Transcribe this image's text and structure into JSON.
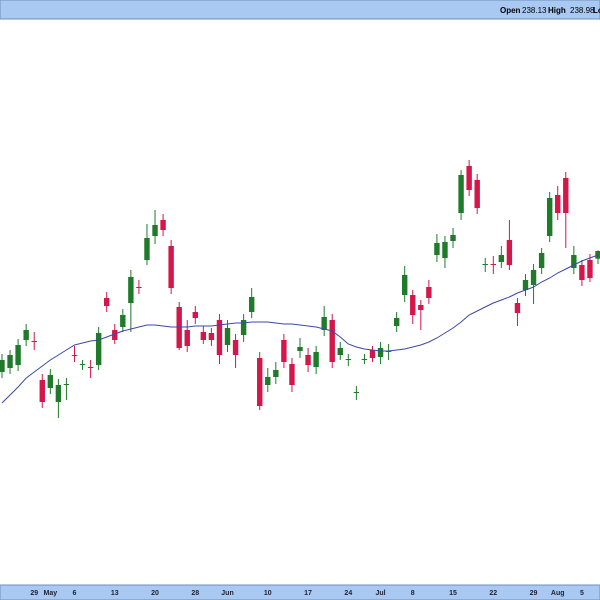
{
  "chart_data": {
    "type": "candlestick",
    "header": [
      {
        "label": "Open",
        "value": 238.13
      },
      {
        "label": "High",
        "value": 238.98
      },
      {
        "label": "Lo"
      }
    ],
    "categories": [
      null,
      null,
      null,
      null,
      "29",
      null,
      "May",
      null,
      null,
      "6",
      null,
      null,
      null,
      null,
      "13",
      null,
      null,
      null,
      null,
      "20",
      null,
      null,
      null,
      null,
      "28",
      null,
      null,
      null,
      "Jun",
      null,
      null,
      null,
      null,
      "10",
      null,
      null,
      null,
      null,
      "17",
      null,
      null,
      null,
      null,
      "24",
      null,
      null,
      null,
      "Jul",
      null,
      null,
      null,
      "8",
      null,
      null,
      null,
      null,
      "15",
      null,
      null,
      null,
      null,
      "22",
      null,
      null,
      null,
      null,
      "29",
      null,
      null,
      "Aug",
      null,
      null,
      "5",
      null,
      null
    ],
    "open": [
      226.8,
      227.2,
      227.5,
      230.0,
      229.9,
      226.0,
      225.2,
      223.8,
      225.5,
      228.5,
      227.5,
      227.3,
      227.5,
      234.2,
      231.0,
      231.3,
      233.7,
      235.3,
      238.0,
      240.4,
      242.0,
      239.4,
      233.3,
      231.0,
      232.8,
      230.8,
      230.7,
      232.0,
      229.5,
      230.0,
      230.5,
      232.8,
      228.2,
      225.5,
      226.3,
      230.0,
      227.6,
      228.9,
      228.5,
      227.3,
      231.0,
      232.0,
      228.5,
      228.0,
      224.7,
      228.0,
      229.0,
      228.3,
      228.8,
      231.4,
      234.5,
      234.5,
      233.5,
      235.3,
      238.5,
      238.2,
      239.9,
      242.7,
      247.4,
      246.0,
      237.5,
      237.6,
      237.8,
      240.0,
      233.7,
      235.0,
      235.5,
      237.2,
      240.4,
      244.5,
      246.2,
      237.2,
      237.5,
      238.0,
      238.13
    ],
    "high": [
      228.6,
      229.0,
      230.1,
      231.6,
      230.8,
      226.6,
      227.1,
      226.1,
      226.2,
      229.4,
      228.0,
      228.0,
      231.3,
      234.8,
      231.6,
      233.1,
      237.0,
      236.0,
      241.6,
      243.0,
      242.6,
      240.0,
      233.8,
      232.0,
      233.4,
      231.4,
      231.2,
      232.6,
      232.0,
      230.6,
      232.6,
      235.2,
      228.8,
      227.2,
      227.8,
      230.6,
      228.2,
      230.2,
      229.2,
      229.4,
      233.4,
      232.6,
      229.8,
      228.6,
      225.4,
      228.6,
      229.4,
      229.8,
      229.6,
      232.8,
      237.4,
      235.0,
      234.0,
      236.0,
      240.6,
      240.4,
      241.2,
      247.0,
      248.0,
      246.6,
      238.2,
      238.4,
      239.4,
      242.0,
      234.2,
      236.6,
      237.6,
      239.2,
      244.8,
      245.4,
      246.8,
      239.4,
      238.0,
      238.6,
      238.98
    ],
    "low": [
      226.2,
      226.6,
      226.9,
      229.4,
      229.0,
      223.2,
      224.6,
      222.2,
      224.0,
      227.8,
      227.0,
      226.2,
      227.0,
      232.8,
      229.6,
      230.8,
      230.8,
      234.6,
      237.5,
      239.6,
      240.4,
      234.6,
      229.0,
      228.8,
      231.6,
      229.6,
      229.4,
      227.6,
      228.8,
      227.2,
      229.8,
      232.2,
      223.0,
      224.8,
      225.6,
      227.2,
      224.8,
      228.2,
      226.8,
      226.6,
      230.4,
      227.2,
      228.0,
      227.4,
      224.0,
      227.6,
      227.8,
      227.6,
      228.0,
      230.8,
      233.8,
      231.6,
      231.0,
      233.6,
      237.8,
      237.2,
      239.2,
      242.0,
      244.4,
      242.6,
      236.8,
      236.6,
      237.2,
      237.0,
      231.4,
      234.4,
      233.6,
      236.6,
      239.8,
      242.0,
      239.2,
      236.6,
      235.4,
      235.8,
      237.6
    ],
    "close": [
      228.0,
      228.5,
      229.5,
      231.0,
      229.8,
      223.8,
      226.5,
      225.5,
      225.6,
      228.4,
      227.6,
      227.2,
      230.7,
      233.4,
      230.0,
      232.5,
      236.3,
      235.2,
      240.2,
      241.5,
      241.0,
      235.2,
      229.2,
      229.4,
      232.2,
      230.0,
      230.0,
      228.5,
      231.2,
      228.5,
      232.0,
      234.3,
      223.4,
      226.3,
      227.0,
      227.8,
      225.5,
      229.3,
      227.5,
      228.8,
      232.3,
      227.8,
      229.2,
      228.1,
      224.8,
      228.1,
      228.2,
      229.2,
      228.9,
      232.2,
      236.5,
      232.5,
      233.0,
      234.2,
      239.7,
      239.8,
      240.5,
      246.5,
      245.0,
      243.2,
      237.6,
      237.5,
      238.5,
      237.5,
      232.7,
      236.0,
      237.0,
      238.7,
      244.2,
      242.7,
      242.7,
      238.5,
      236.0,
      236.2,
      238.9
    ],
    "ma": {
      "color": "#3a48a8",
      "values": [
        223.7,
        224.5,
        225.3,
        226.2,
        226.8,
        227.4,
        228.0,
        228.5,
        229.0,
        229.5,
        229.7,
        229.9,
        230.0,
        230.3,
        230.6,
        230.9,
        231.1,
        231.3,
        231.5,
        231.5,
        231.4,
        231.3,
        231.3,
        231.3,
        231.4,
        231.4,
        231.4,
        231.5,
        231.6,
        231.7,
        231.7,
        231.8,
        231.8,
        231.8,
        231.7,
        231.6,
        231.6,
        231.5,
        231.4,
        231.3,
        231.1,
        230.9,
        230.3,
        229.6,
        229.3,
        229.1,
        229.0,
        228.9,
        228.9,
        229.0,
        229.1,
        229.3,
        229.5,
        229.8,
        230.2,
        230.7,
        231.2,
        231.8,
        232.5,
        232.9,
        233.3,
        233.7,
        234.0,
        234.3,
        234.7,
        235.0,
        235.3,
        235.8,
        236.2,
        236.7,
        237.1,
        237.5,
        237.9,
        238.2,
        238.5
      ]
    },
    "up_color": "#1f7a2a",
    "down_color": "#d3174a",
    "ylim": [
      205.5,
      262
    ]
  }
}
